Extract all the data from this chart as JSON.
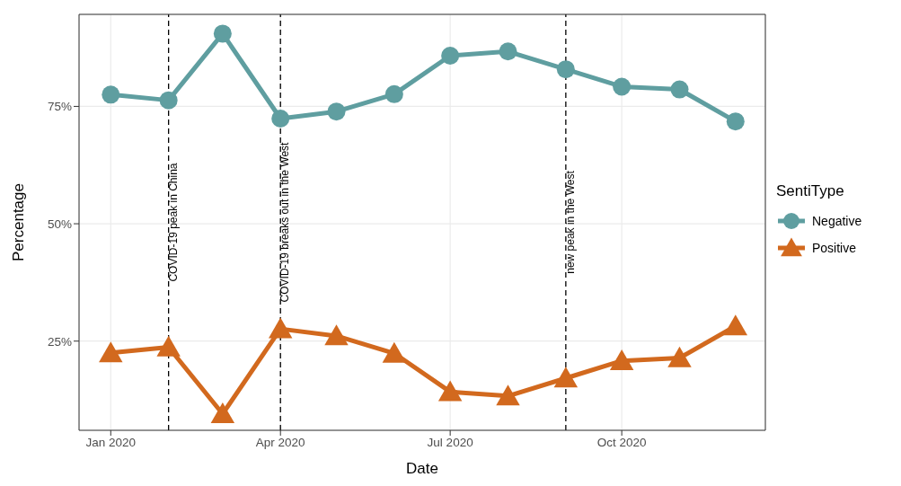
{
  "chart_data": {
    "type": "line",
    "xlabel": "Date",
    "ylabel": "Percentage",
    "legend_title": "SentiType",
    "legend": "right",
    "grid": true,
    "line_style": "solid",
    "x": [
      "2020-01-01",
      "2020-02-01",
      "2020-03-01",
      "2020-04-01",
      "2020-05-01",
      "2020-06-01",
      "2020-07-01",
      "2020-08-01",
      "2020-09-01",
      "2020-10-01",
      "2020-11-01",
      "2020-12-01"
    ],
    "xlim": [
      "2019-12-15",
      "2020-12-17"
    ],
    "xticks": [
      {
        "value": "2020-01-01",
        "label": "Jan 2020"
      },
      {
        "value": "2020-04-01",
        "label": "Apr 2020"
      },
      {
        "value": "2020-07-01",
        "label": "Jul 2020"
      },
      {
        "value": "2020-10-01",
        "label": "Oct 2020"
      }
    ],
    "ylim": [
      6,
      94.6
    ],
    "yticks": [
      {
        "value": 25,
        "label": "25%"
      },
      {
        "value": 50,
        "label": "50%"
      },
      {
        "value": 75,
        "label": "75%"
      }
    ],
    "series": [
      {
        "name": "Negative",
        "color": "#5f9ea0",
        "marker": "circle",
        "values": [
          77.5,
          76.3,
          90.5,
          72.4,
          73.9,
          77.6,
          85.8,
          86.7,
          82.9,
          79.2,
          78.6,
          71.8
        ]
      },
      {
        "name": "Positive",
        "color": "#d2691e",
        "marker": "triangle",
        "values": [
          22.5,
          23.7,
          9.5,
          27.6,
          26.1,
          22.4,
          14.2,
          13.3,
          17.1,
          20.8,
          21.4,
          28.2
        ]
      }
    ],
    "ref_lines": [
      {
        "axis": "x",
        "value": "2020-02-01",
        "label": "COVID-19 peak in China",
        "color": "#000000",
        "line_style": "dashed"
      },
      {
        "axis": "x",
        "value": "2020-04-01",
        "label": "COVID-19 breaks out in the West",
        "color": "#000000",
        "line_style": "dashed"
      },
      {
        "axis": "x",
        "value": "2020-09-01",
        "label": "new peak in the West",
        "color": "#000000",
        "line_style": "dashed"
      }
    ]
  }
}
